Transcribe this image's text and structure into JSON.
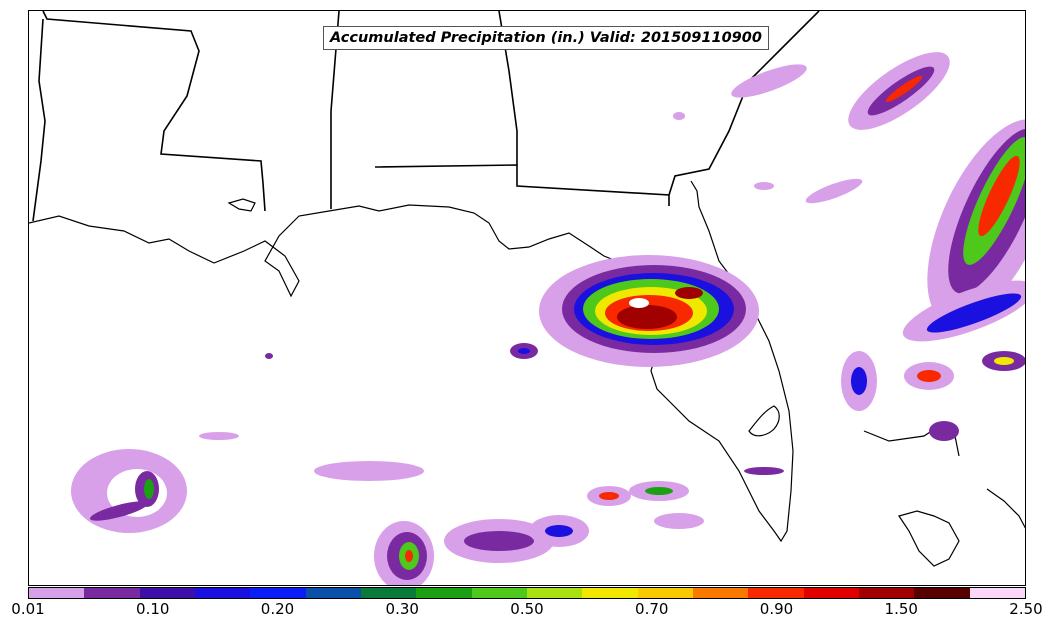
{
  "map": {
    "title": "Accumulated Precipitation (in.) Valid: 201509110900"
  },
  "colorbar": {
    "colors": [
      "#d8a0e8",
      "#7a2aa0",
      "#3d0fa8",
      "#1a10e0",
      "#0a1ef5",
      "#0a50a8",
      "#0a7a3a",
      "#1aa012",
      "#4ec81a",
      "#a8e012",
      "#f0e800",
      "#f8c800",
      "#f87800",
      "#f82800",
      "#e00000",
      "#a00000",
      "#580000",
      "#fcd8f8"
    ],
    "tick_labels": [
      "0.01",
      "0.10",
      "0.20",
      "0.30",
      "0.50",
      "0.70",
      "0.90",
      "1.50",
      "2.50"
    ]
  }
}
